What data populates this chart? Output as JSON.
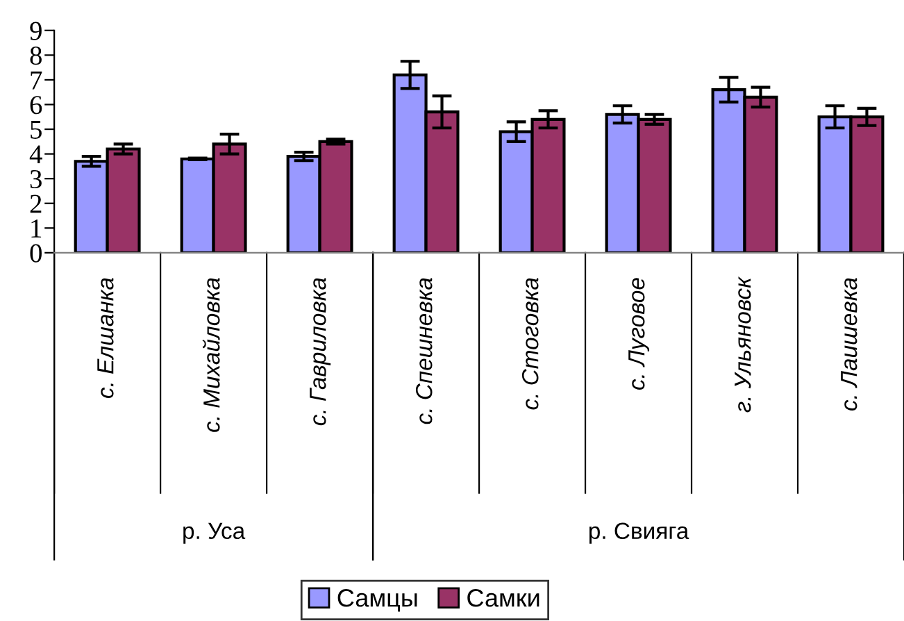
{
  "chart_data": {
    "type": "bar",
    "categories": [
      "с. Елшанка",
      "с. Михайловка",
      "с. Гавриловка",
      "с. Спешневка",
      "с. Стоговка",
      "с. Луговое",
      "г. Ульяновск",
      "с. Лаишевка"
    ],
    "series": [
      {
        "name": "Самцы",
        "color": "#9999ff",
        "values": [
          3.7,
          3.8,
          3.9,
          7.2,
          4.9,
          5.6,
          6.6,
          5.5
        ],
        "errors": [
          0.2,
          0.03,
          0.17,
          0.55,
          0.4,
          0.35,
          0.5,
          0.45
        ]
      },
      {
        "name": "Самки",
        "color": "#993366",
        "values": [
          4.2,
          4.4,
          4.5,
          5.7,
          5.4,
          5.4,
          6.3,
          5.5
        ],
        "errors": [
          0.2,
          0.4,
          0.1,
          0.65,
          0.35,
          0.2,
          0.4,
          0.35
        ]
      }
    ],
    "ylim": [
      0,
      9
    ],
    "yticks": [
      0,
      1,
      2,
      3,
      4,
      5,
      6,
      7,
      8,
      9
    ],
    "annotations": [
      "р. Уса",
      "р. Свияга"
    ],
    "grid": false,
    "legend": "bottom"
  }
}
